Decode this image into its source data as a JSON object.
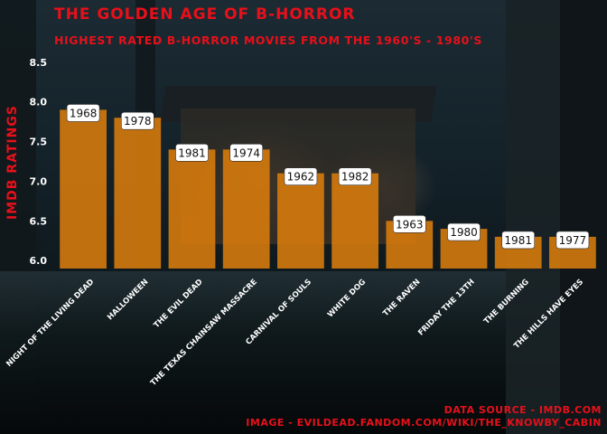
{
  "chart_data": {
    "type": "bar",
    "title": "THE GOLDEN AGE OF B-HORROR",
    "subtitle": "HIGHEST RATED B-HORROR MOVIES FROM THE 1960'S - 1980'S",
    "xlabel": "",
    "ylabel": "IMDB RATINGS",
    "ylim": [
      5.9,
      8.6
    ],
    "yticks": [
      6.0,
      6.5,
      7.0,
      7.5,
      8.0,
      8.5
    ],
    "ytick_labels": [
      "6.0",
      "6.5",
      "7.0",
      "7.5",
      "8.0",
      "8.5"
    ],
    "categories": [
      "NIGHT OF THE LIVING DEAD",
      "HALLOWEEN",
      "THE EVIL DEAD",
      "THE TEXAS CHAINSAW MASSACRE",
      "CARNIVAL OF SOULS",
      "WHITE DOG",
      "THE RAVEN",
      "FRIDAY THE 13TH",
      "THE BURNING",
      "THE HILLS HAVE EYES"
    ],
    "values": [
      7.9,
      7.8,
      7.4,
      7.4,
      7.1,
      7.1,
      6.5,
      6.4,
      6.3,
      6.3
    ],
    "data_labels": [
      "1968",
      "1978",
      "1981",
      "1974",
      "1962",
      "1982",
      "1963",
      "1980",
      "1981",
      "1977"
    ],
    "bar_color": "#d97c0c",
    "grid": false,
    "caption_lines": [
      "DATA SOURCE - IMDB.COM",
      "IMAGE - EVILDEAD.FANDOM.COM/WIKI/THE_KNOWBY_CABIN"
    ]
  },
  "colors": {
    "title": "#e8101a",
    "bar": "#d97c0c",
    "label_box": "#ffffff"
  }
}
